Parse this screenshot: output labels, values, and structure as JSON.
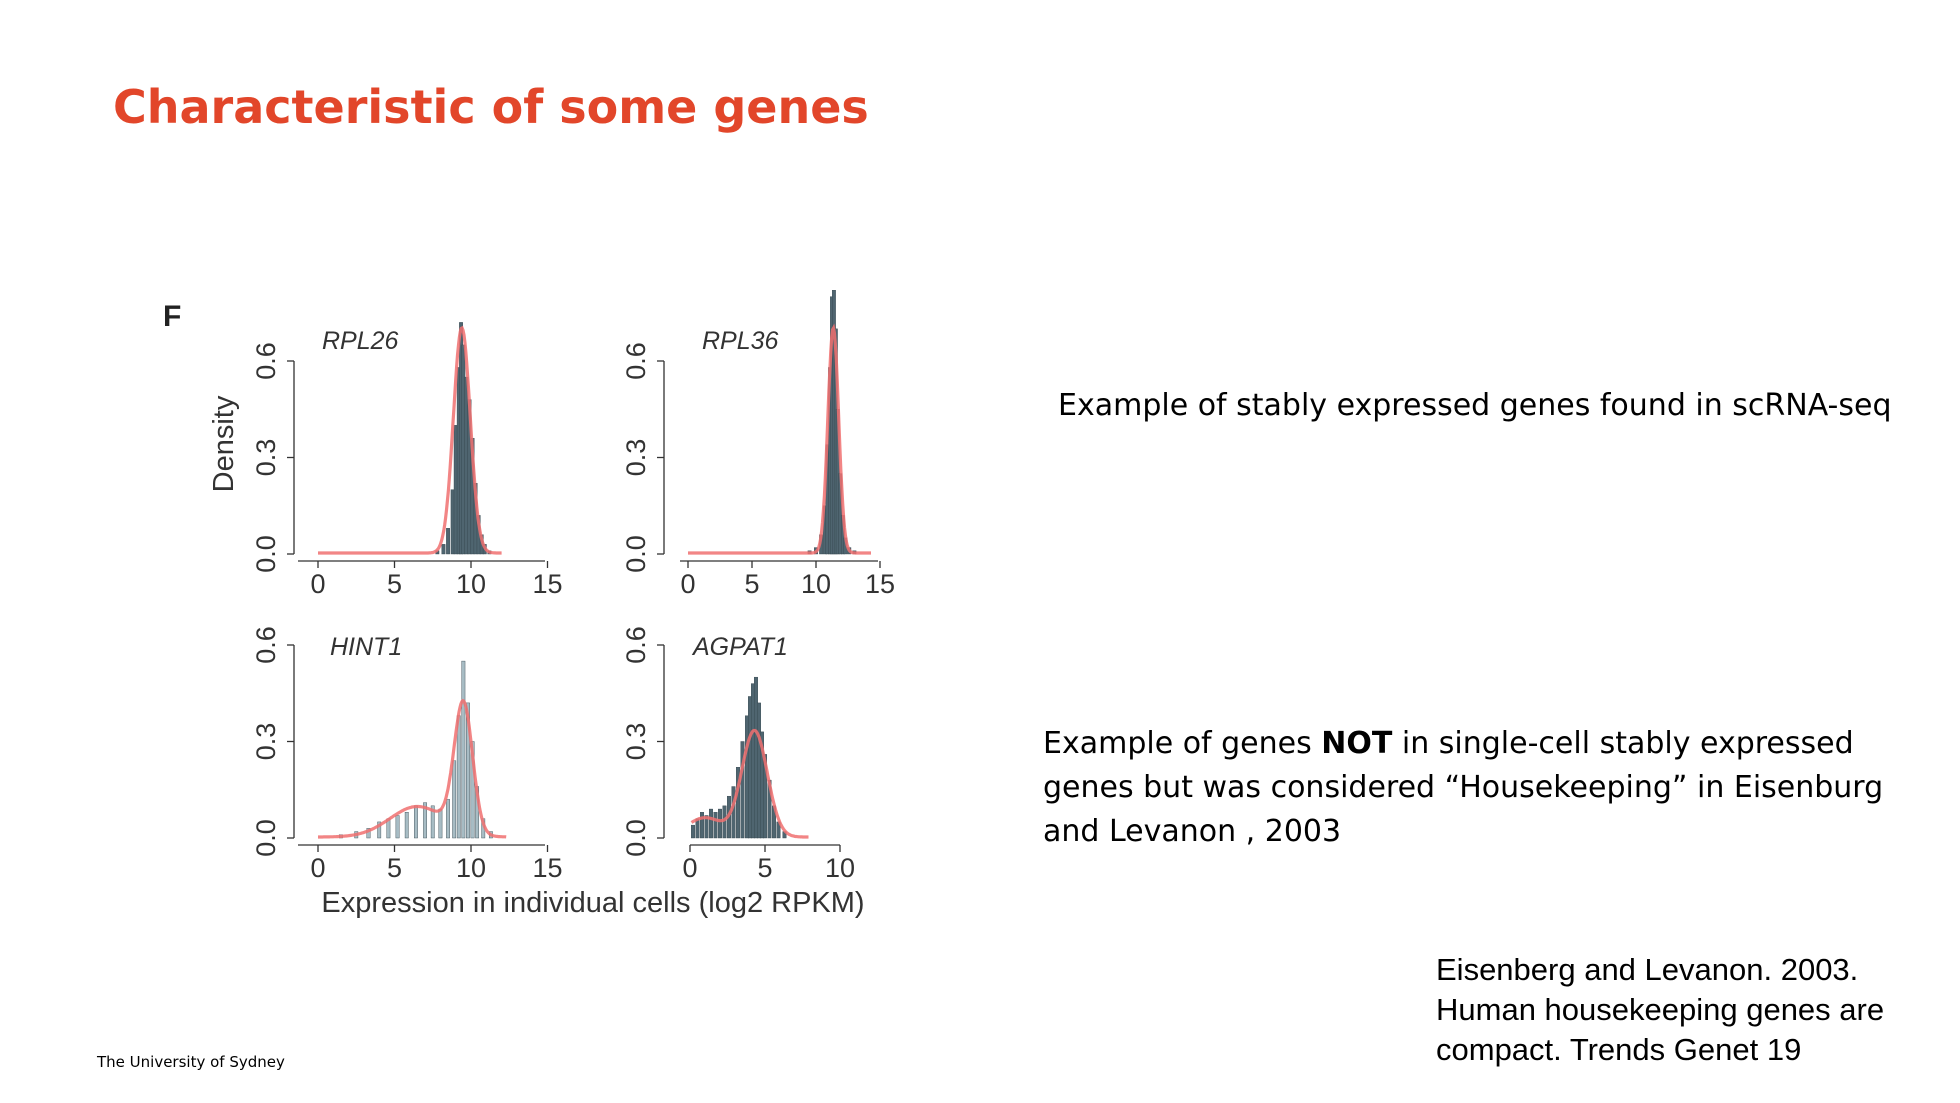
{
  "slide": {
    "title": "Characteristic of some genes",
    "panel_letter": "F",
    "note_stable": "Example of stably expressed genes found in scRNA-seq",
    "note_not_stable_prefix": "Example of genes ",
    "note_not_stable_bold": "NOT",
    "note_not_stable_suffix": " in single-cell stably expressed genes but was considered “Housekeeping” in Eisenburg and Levanon , 2003",
    "citation": "Eisenberg and Levanon. 2003. Human housekeeping genes are compact. Trends Genet 19",
    "footer": "The University of Sydney"
  },
  "colors": {
    "title": "#e2462a",
    "density_curve": "#f07070",
    "bar_dark": "#4f6570",
    "bar_light": "#a7bcc4"
  },
  "chart_data": [
    {
      "type": "bar",
      "title": "RPL26",
      "ylabel": "Density",
      "xlabel": "",
      "xlim": [
        0,
        15
      ],
      "ylim": [
        0,
        0.6
      ],
      "xticks": [
        0,
        5,
        10,
        15
      ],
      "yticks": [
        0.0,
        0.3,
        0.6
      ],
      "ytick_labels": [
        "0.0",
        "0.3",
        "0.6"
      ],
      "bar_style": "dark",
      "bins": [
        [
          7.8,
          0.01
        ],
        [
          8.2,
          0.03
        ],
        [
          8.5,
          0.08
        ],
        [
          8.8,
          0.2
        ],
        [
          9.0,
          0.4
        ],
        [
          9.2,
          0.58
        ],
        [
          9.35,
          0.72
        ],
        [
          9.5,
          0.65
        ],
        [
          9.7,
          0.55
        ],
        [
          9.9,
          0.48
        ],
        [
          10.1,
          0.36
        ],
        [
          10.3,
          0.22
        ],
        [
          10.5,
          0.12
        ],
        [
          10.7,
          0.06
        ],
        [
          10.9,
          0.03
        ],
        [
          11.2,
          0.01
        ]
      ],
      "curve": {
        "peaks": [
          {
            "mu": 9.4,
            "sigma": 0.55,
            "amp": 0.7
          }
        ],
        "x_range": [
          0,
          12
        ]
      }
    },
    {
      "type": "bar",
      "title": "RPL36",
      "ylabel": "",
      "xlabel": "",
      "xlim": [
        0,
        15
      ],
      "ylim": [
        0,
        0.6
      ],
      "xticks": [
        0,
        5,
        10,
        15
      ],
      "yticks": [
        0.0,
        0.3,
        0.6
      ],
      "ytick_labels": [
        "0.0",
        "0.3",
        "0.6"
      ],
      "bar_style": "dark",
      "bins": [
        [
          9.5,
          0.01
        ],
        [
          10.0,
          0.02
        ],
        [
          10.4,
          0.06
        ],
        [
          10.7,
          0.15
        ],
        [
          10.9,
          0.34
        ],
        [
          11.1,
          0.58
        ],
        [
          11.25,
          0.8
        ],
        [
          11.4,
          0.82
        ],
        [
          11.55,
          0.7
        ],
        [
          11.7,
          0.45
        ],
        [
          11.9,
          0.25
        ],
        [
          12.1,
          0.12
        ],
        [
          12.3,
          0.05
        ],
        [
          12.6,
          0.02
        ],
        [
          13.0,
          0.01
        ]
      ],
      "curve": {
        "peaks": [
          {
            "mu": 11.35,
            "sigma": 0.42,
            "amp": 0.7
          }
        ],
        "x_range": [
          0,
          14.3
        ]
      }
    },
    {
      "type": "bar",
      "title": "HINT1",
      "ylabel": "",
      "xlabel": "",
      "xlim": [
        0,
        15
      ],
      "ylim": [
        0,
        0.6
      ],
      "xticks": [
        0,
        5,
        10,
        15
      ],
      "yticks": [
        0.0,
        0.3,
        0.6
      ],
      "ytick_labels": [
        "0.0",
        "0.3",
        "0.6"
      ],
      "bar_style": "light",
      "bins": [
        [
          1.5,
          0.01
        ],
        [
          2.5,
          0.02
        ],
        [
          3.3,
          0.03
        ],
        [
          4.0,
          0.05
        ],
        [
          4.6,
          0.06
        ],
        [
          5.2,
          0.07
        ],
        [
          5.8,
          0.08
        ],
        [
          6.4,
          0.1
        ],
        [
          7.0,
          0.11
        ],
        [
          7.5,
          0.1
        ],
        [
          8.0,
          0.09
        ],
        [
          8.5,
          0.12
        ],
        [
          8.9,
          0.24
        ],
        [
          9.2,
          0.38
        ],
        [
          9.5,
          0.55
        ],
        [
          9.8,
          0.42
        ],
        [
          10.1,
          0.3
        ],
        [
          10.4,
          0.16
        ],
        [
          10.8,
          0.06
        ],
        [
          11.3,
          0.02
        ]
      ],
      "curve": {
        "peaks": [
          {
            "mu": 9.5,
            "sigma": 0.6,
            "amp": 0.4
          },
          {
            "mu": 6.5,
            "sigma": 1.8,
            "amp": 0.095
          }
        ],
        "x_range": [
          0,
          12.3
        ]
      }
    },
    {
      "type": "bar",
      "title": "AGPAT1",
      "ylabel": "",
      "xlabel": "",
      "xlim": [
        0,
        10
      ],
      "ylim": [
        0,
        0.6
      ],
      "xticks": [
        0,
        5,
        10
      ],
      "yticks": [
        0.0,
        0.3,
        0.6
      ],
      "ytick_labels": [
        "0.0",
        "0.3",
        "0.6"
      ],
      "bar_style": "dark",
      "bins": [
        [
          0.2,
          0.04
        ],
        [
          0.5,
          0.06
        ],
        [
          0.8,
          0.08
        ],
        [
          1.1,
          0.07
        ],
        [
          1.4,
          0.09
        ],
        [
          1.7,
          0.08
        ],
        [
          2.0,
          0.09
        ],
        [
          2.3,
          0.1
        ],
        [
          2.6,
          0.13
        ],
        [
          2.9,
          0.16
        ],
        [
          3.2,
          0.22
        ],
        [
          3.5,
          0.3
        ],
        [
          3.8,
          0.38
        ],
        [
          4.0,
          0.44
        ],
        [
          4.2,
          0.48
        ],
        [
          4.4,
          0.5
        ],
        [
          4.6,
          0.42
        ],
        [
          4.8,
          0.33
        ],
        [
          5.0,
          0.26
        ],
        [
          5.3,
          0.18
        ],
        [
          5.6,
          0.1
        ],
        [
          5.9,
          0.05
        ],
        [
          6.3,
          0.02
        ]
      ],
      "curve": {
        "peaks": [
          {
            "mu": 4.3,
            "sigma": 0.85,
            "amp": 0.33
          },
          {
            "mu": 1.0,
            "sigma": 1.2,
            "amp": 0.06
          }
        ],
        "x_range": [
          0.1,
          7.9
        ]
      }
    }
  ],
  "shared_xlabel": "Expression in individual cells (log2 RPKM)"
}
